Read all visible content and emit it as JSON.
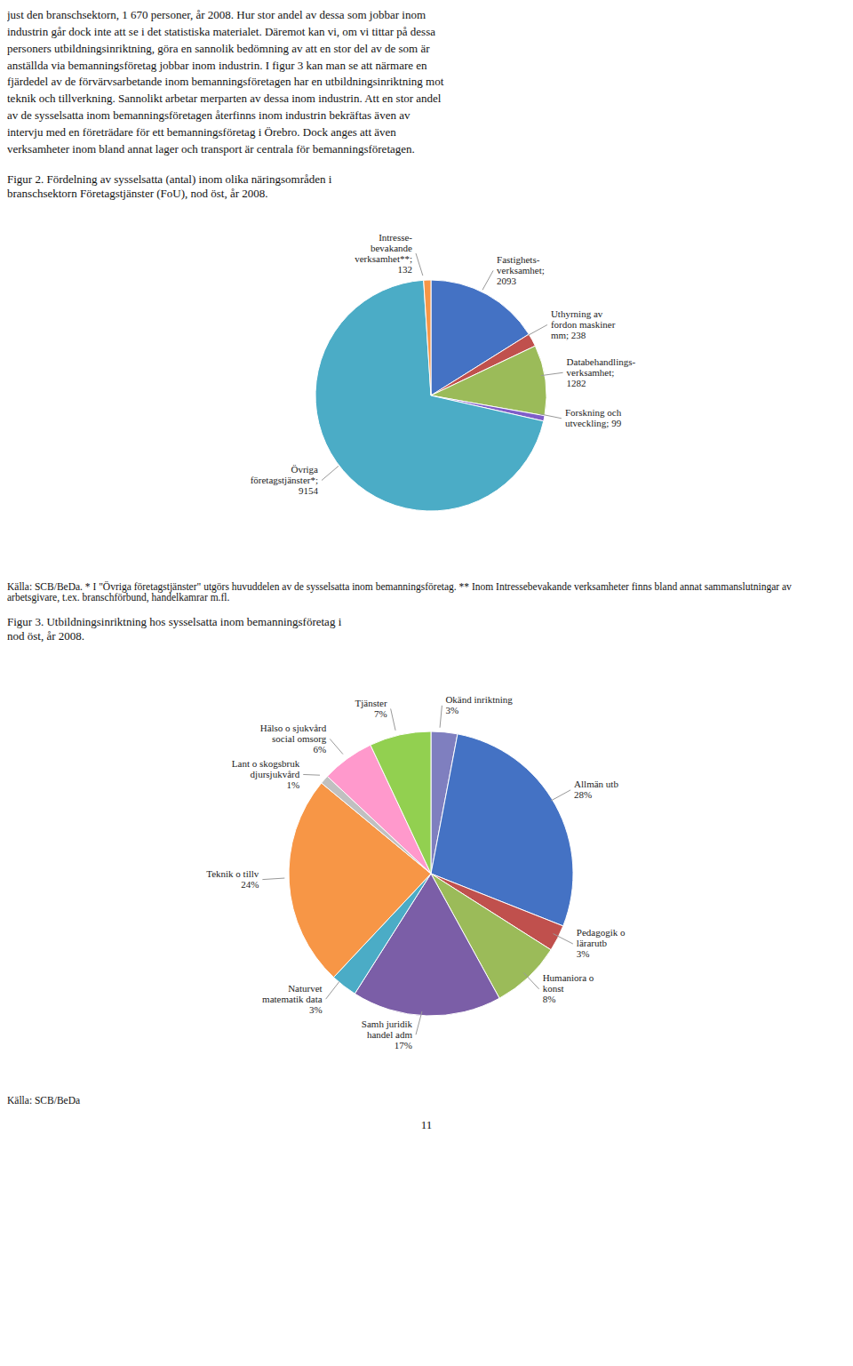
{
  "annotations": [
    "just den branschsektorn, 1 670 personer, år 2008. Hur stor andel av dessa som jobbar inom\nindustrin går dock inte att se i det statistiska materialet. Däremot kan vi, om vi tittar på dessa\npersoners utbildningsinriktning, göra en sannolik bedömning av att en stor del av de som är\nanställda via bemanningsföretag jobbar inom industrin. I figur 3 kan man se att närmare en\nfjärdedel av de förvärvsarbetande inom bemanningsföretagen har en utbildningsinriktning mot\nteknik och tillverkning. Sannolikt arbetar merparten av dessa inom industrin. Att en stor andel\nav de sysselsatta inom bemanningsföretagen återfinns inom industrin bekräftas även av\nintervju med en företrädare för ett bemanningsföretag i Örebro. Dock anges att även\nverksamheter inom bland annat lager och transport är centrala för bemanningsföretagen.",
    "11"
  ],
  "chart_data": [
    {
      "type": "pie",
      "title": "Figur 2. Fördelning av sysselsatta (antal) inom olika näringsområden i\nbranschsektorn Företagstjänster (FoU), nod öst, år 2008.",
      "categories": [
        "Fastighets-\nverksamhet;\n2093",
        "Uthyrning av\nfordon maskiner\nmm; 238",
        "Databehandlings-\nverksamhet;\n1282",
        "Forskning och\nutveckling; 99",
        "Övriga\nföretagstjänster*;\n9154",
        "Intresse-\nbevakande\nverksamhet**;\n132"
      ],
      "values": [
        2093,
        238,
        1282,
        99,
        9154,
        132
      ],
      "colors": [
        "#4472C4",
        "#C0504D",
        "#9BBB59",
        "#7F5DC8",
        "#4BACC6",
        "#F79646"
      ],
      "annotations": [
        "Källa: SCB/BeDa. * I \"Övriga företagstjänster\" utgörs huvuddelen av de sysselsatta inom bemanningsföretag. ** Inom Intressebevakande verksamheter finns bland annat sammanslutningar av arbetsgivare, t.ex. branschförbund, handelkamrar m.fl."
      ]
    },
    {
      "type": "pie",
      "title": "Figur 3. Utbildningsinriktning hos sysselsatta inom bemanningsföretag i\nnod öst, år 2008.",
      "categories": [
        "Okänd inriktning\n3%",
        "Allmän utb\n28%",
        "Pedagogik o\nlärarutb\n3%",
        "Humaniora o\nkonst\n8%",
        "Samh juridik\nhandel adm\n17%",
        "Naturvet\nmatematik data\n3%",
        "Teknik o tillv\n24%",
        "Lant o skogsbruk\ndjursjukvård\n1%",
        "Hälso o sjukvård\nsocial omsorg\n6%",
        "Tjänster\n7%"
      ],
      "values": [
        3,
        28,
        3,
        8,
        17,
        3,
        24,
        1,
        6,
        7
      ],
      "colors": [
        "#7F7FBF",
        "#4472C4",
        "#C0504D",
        "#9BBB59",
        "#7B5EA7",
        "#4BACC6",
        "#F79646",
        "#C0C0C0",
        "#FF99CC",
        "#92D050"
      ],
      "annotations": [
        "Källa: SCB/BeDa"
      ]
    }
  ]
}
